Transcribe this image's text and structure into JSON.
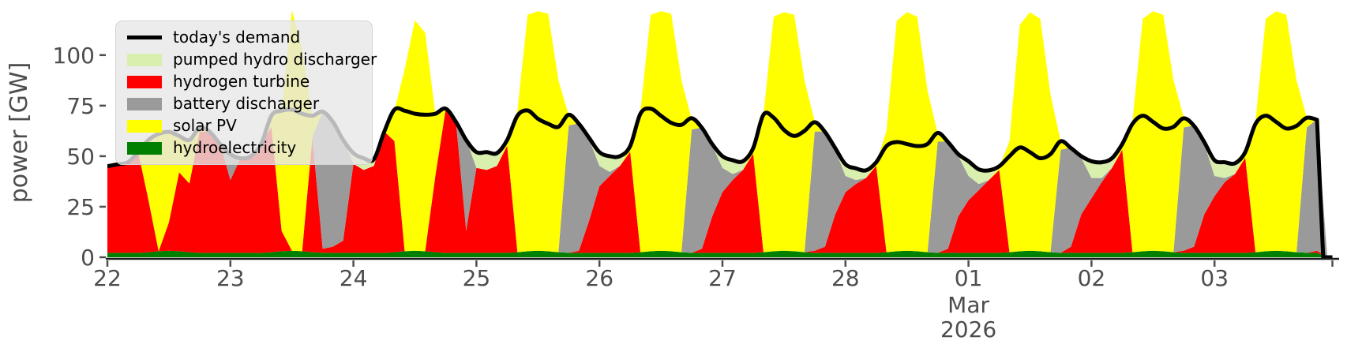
{
  "figure": {
    "background_color": "#ffffff",
    "text_color": "#4d4d4d",
    "spine_color": "#1a1a1a",
    "demand_line_color": "#000000",
    "demand_line_width": 5
  },
  "legend": {
    "background_color": "rgba(231,231,231,0.8)",
    "entries": [
      {
        "label": "today's demand",
        "handle": "line",
        "color": "#000000"
      },
      {
        "label": "pumped hydro discharger",
        "handle": "patch",
        "color": "#d9efae"
      },
      {
        "label": "hydrogen turbine",
        "handle": "patch",
        "color": "#ff0000"
      },
      {
        "label": "battery discharger",
        "handle": "patch",
        "color": "#9a9a9a"
      },
      {
        "label": "solar PV",
        "handle": "patch",
        "color": "#ffff00"
      },
      {
        "label": "hydroelectricity",
        "handle": "patch",
        "color": "#008000"
      }
    ]
  },
  "chart_data": {
    "type": "area",
    "title": "",
    "ylabel": "power [GW]",
    "xlabel": "",
    "grid": false,
    "legend_position": "upper left",
    "ylim": [
      0,
      123.35
    ],
    "y_ticks": [
      0,
      25,
      50,
      75,
      100
    ],
    "x_unit": "hours since 2026-02-22 00:00",
    "x_start_hour": 0,
    "x_step_hours": 2,
    "n_points": 121,
    "xlim_hours": [
      0,
      240
    ],
    "data_end_hour": 236,
    "x_ticks": [
      {
        "hour": 0,
        "label": "22"
      },
      {
        "hour": 24,
        "label": "23"
      },
      {
        "hour": 48,
        "label": "24"
      },
      {
        "hour": 72,
        "label": "25"
      },
      {
        "hour": 96,
        "label": "26"
      },
      {
        "hour": 120,
        "label": "27"
      },
      {
        "hour": 144,
        "label": "28"
      },
      {
        "hour": 168,
        "label": "01"
      },
      {
        "hour": 192,
        "label": "02"
      },
      {
        "hour": 216,
        "label": "03"
      },
      {
        "hour": 239,
        "label": ""
      }
    ],
    "x_axis_annotation": {
      "month": "Mar",
      "year": "2026",
      "at_hour": 168
    },
    "stack_order_bottom_to_top": [
      "hydroelectricity",
      "hydrogen turbine",
      "battery discharger",
      "solar PV",
      "pumped hydro discharger"
    ],
    "series": [
      {
        "name": "hydroelectricity",
        "type": "area",
        "color": "#008000",
        "values": [
          2.2,
          2.2,
          2.2,
          2.2,
          2.5,
          3,
          3.2,
          3,
          2.5,
          2.2,
          2.2,
          2.2,
          2.2,
          2.2,
          2.2,
          2.2,
          2.5,
          3,
          3.2,
          3,
          2.5,
          2.2,
          2.2,
          2.2,
          2.2,
          2.2,
          2.2,
          2.2,
          2.5,
          3,
          3.2,
          3,
          2.5,
          2.2,
          2.2,
          2.2,
          2.2,
          2.2,
          2.2,
          2.2,
          2.5,
          3,
          3.2,
          3,
          2.5,
          2.2,
          2.2,
          2.2,
          2.2,
          2.2,
          2.2,
          2.2,
          2.5,
          3,
          3.2,
          3,
          2.5,
          2.2,
          2.2,
          2.2,
          2.2,
          2.2,
          2.2,
          2.2,
          2.5,
          3,
          3.2,
          3,
          2.5,
          2.2,
          2.2,
          2.2,
          2.2,
          2.2,
          2.2,
          2.2,
          2.5,
          3,
          3.2,
          3,
          2.5,
          2.2,
          2.2,
          2.2,
          2.2,
          2.2,
          2.2,
          2.2,
          2.5,
          3,
          3.2,
          3,
          2.5,
          2.2,
          2.2,
          2.2,
          2.2,
          2.2,
          2.2,
          2.2,
          2.5,
          3,
          3.2,
          3,
          2.5,
          2.2,
          2.2,
          2.2,
          2.2,
          2.2,
          2.2,
          2.2,
          2.5,
          3,
          3.2,
          3,
          2.5,
          2.2,
          2.2,
          0,
          0
        ]
      },
      {
        "name": "hydrogen turbine",
        "type": "area",
        "color": "#ff0000",
        "values": [
          43,
          44,
          45,
          50,
          26,
          0,
          14,
          39,
          34,
          60,
          60,
          54,
          36,
          47,
          48,
          54,
          62,
          10,
          0,
          0,
          57,
          2,
          3,
          6,
          44,
          41,
          43,
          60,
          55,
          0,
          0,
          0,
          38,
          71,
          65,
          11,
          42,
          41,
          43,
          53,
          0,
          0,
          0,
          0,
          0,
          0,
          1,
          16,
          33,
          38,
          43,
          50,
          0,
          0,
          0,
          0,
          0,
          0,
          2,
          18,
          30,
          36,
          41,
          49,
          0,
          0,
          0,
          0,
          0,
          1,
          3,
          19,
          30,
          34,
          37,
          43,
          0,
          0,
          0,
          0,
          0,
          0,
          2,
          18,
          26,
          31,
          36,
          41,
          0,
          0,
          0,
          0,
          0,
          0,
          3,
          19,
          27,
          35,
          42,
          51,
          0,
          0,
          0,
          0,
          0,
          1,
          3,
          19,
          28,
          35,
          39,
          47,
          0,
          0,
          0,
          0,
          0,
          0,
          1,
          0,
          0
        ]
      },
      {
        "name": "battery discharger",
        "type": "area",
        "color": "#9a9a9a",
        "values": [
          0,
          0,
          0,
          0,
          0,
          0,
          0,
          0,
          0,
          0,
          0,
          0,
          13,
          0,
          0,
          0,
          0,
          0,
          0,
          0,
          0,
          68,
          62,
          50,
          0,
          0,
          0,
          0,
          0,
          0,
          0,
          0,
          0,
          0,
          0,
          45,
          0,
          0,
          0,
          0,
          0,
          0,
          0,
          0,
          0,
          63,
          63,
          40,
          10,
          2,
          0,
          0,
          0,
          0,
          0,
          0,
          0,
          61,
          60,
          35,
          12,
          3,
          0,
          0,
          0,
          0,
          0,
          0,
          0,
          59,
          57,
          32,
          8,
          2,
          0,
          0,
          0,
          0,
          0,
          0,
          0,
          55,
          53,
          30,
          12,
          3,
          0,
          0,
          0,
          0,
          0,
          0,
          0,
          51,
          49,
          28,
          10,
          2,
          0,
          0,
          0,
          0,
          0,
          0,
          0,
          61,
          60,
          35,
          10,
          2,
          0,
          0,
          0,
          0,
          0,
          0,
          0,
          62,
          65,
          0,
          0
        ]
      },
      {
        "name": "solar PV",
        "type": "area",
        "color": "#ffff00",
        "values": [
          0,
          0,
          0,
          0,
          30,
          60,
          45,
          18,
          22,
          2,
          0,
          0,
          0,
          0,
          0,
          0,
          5,
          60,
          119,
          100,
          10,
          0,
          0,
          0,
          0,
          0,
          0,
          0,
          15,
          90,
          114,
          108,
          30,
          0,
          0,
          0,
          0,
          0,
          0,
          2,
          70,
          117,
          118.5,
          117.5,
          85,
          5,
          0,
          0,
          0,
          0,
          0,
          2,
          70,
          117,
          118.5,
          117.5,
          85,
          5,
          0,
          0,
          0,
          0,
          0,
          2,
          68,
          116,
          118,
          117,
          85,
          5,
          0,
          0,
          0,
          0,
          0,
          1,
          60,
          114,
          118,
          116,
          80,
          4,
          0,
          0,
          0,
          0,
          0,
          1,
          55,
          112,
          118,
          115,
          78,
          4,
          0,
          0,
          0,
          0,
          0,
          2,
          65,
          115,
          118.5,
          117,
          85,
          5,
          0,
          0,
          0,
          0,
          0,
          2,
          65,
          115,
          118.5,
          117,
          85,
          5,
          0,
          0,
          0
        ]
      },
      {
        "name": "pumped hydro discharger",
        "type": "area",
        "color": "#d9efae",
        "values": [
          0,
          0,
          0,
          0,
          0,
          0,
          0,
          0,
          0,
          0,
          0,
          0,
          0,
          0,
          0,
          0,
          0,
          0,
          0,
          0,
          0,
          0,
          0,
          0,
          5,
          6,
          3,
          0,
          0,
          0,
          0,
          0,
          0,
          0,
          0,
          0,
          8,
          9,
          6,
          1,
          0,
          0,
          0,
          0,
          0,
          0,
          0,
          1,
          7,
          8,
          5,
          1,
          0,
          0,
          0,
          0,
          0,
          0,
          0,
          1,
          6,
          7,
          4,
          1,
          0,
          0,
          0,
          0,
          0,
          0,
          0,
          1,
          6,
          6,
          4,
          1,
          0,
          0,
          0,
          0,
          0,
          0,
          0,
          1,
          7,
          7,
          5,
          1,
          0,
          0,
          0,
          0,
          0,
          0,
          0,
          1,
          8,
          8,
          5,
          1,
          0,
          0,
          0,
          0,
          0,
          0,
          0,
          1,
          8,
          8,
          5,
          1,
          0,
          0,
          0,
          0,
          0,
          0,
          0,
          0,
          0
        ]
      },
      {
        "name": "today's demand",
        "type": "line",
        "color": "#000000",
        "values": [
          45,
          46,
          47,
          52,
          58,
          61,
          62,
          60,
          58,
          64,
          62,
          56,
          51,
          49,
          50,
          56,
          70,
          72.5,
          73,
          71,
          70,
          72,
          67,
          58,
          51.5,
          49,
          48.5,
          62,
          73,
          72.5,
          71,
          70.5,
          71,
          73.5,
          67,
          58,
          52,
          52,
          51.5,
          58,
          70,
          72.6,
          68.5,
          66,
          64.5,
          70.5,
          66,
          59,
          52,
          50,
          50,
          55,
          71,
          73.5,
          70,
          66.5,
          65.5,
          68.8,
          64,
          56,
          50,
          48,
          47.5,
          54,
          70.5,
          69,
          63,
          60,
          62.5,
          66.8,
          62,
          54,
          46,
          44,
          43,
          47,
          55,
          57,
          56,
          55,
          56,
          61.5,
          57,
          51,
          47.5,
          43.5,
          43,
          45,
          50,
          54.3,
          52,
          49,
          51,
          57.4,
          54,
          50,
          47.5,
          47,
          49,
          56,
          66,
          70,
          67,
          63.7,
          64.5,
          68.75,
          65,
          57,
          48,
          47,
          46.5,
          52,
          66,
          70,
          67,
          63.7,
          65,
          69,
          68,
          0,
          0
        ]
      }
    ]
  }
}
